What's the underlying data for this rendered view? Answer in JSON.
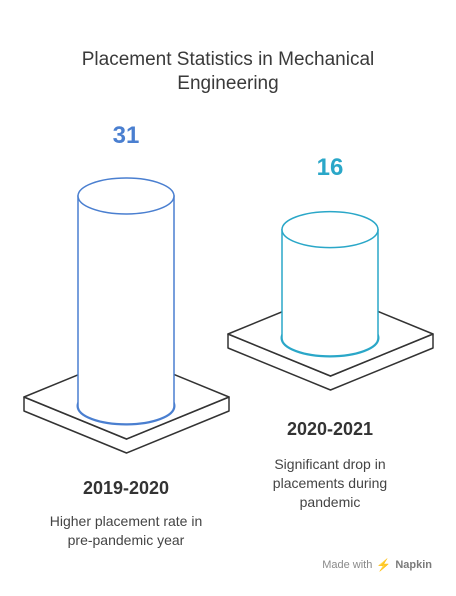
{
  "chart_data": {
    "type": "bar",
    "title_lines": [
      "Placement Statistics in Mechanical",
      "Engineering"
    ],
    "categories": [
      "2019-2020",
      "2020-2021"
    ],
    "values": [
      31,
      16
    ],
    "descriptions": [
      [
        "Higher placement rate in",
        "pre-pandemic year"
      ],
      [
        "Significant drop in",
        "placements during",
        "pandemic"
      ]
    ],
    "colors": [
      "#4a7fd0",
      "#2aa7c8"
    ],
    "ylim": [
      0,
      31
    ]
  },
  "footer": {
    "made_with": "Made with",
    "brand": "Napkin",
    "logo_icon": "napkin-logo-icon"
  }
}
